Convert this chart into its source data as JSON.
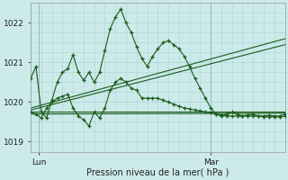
{
  "background_color": "#cceaea",
  "grid_color": "#aad4d4",
  "line_color": "#1a5c1a",
  "title": "Pression niveau de la mer( hPa )",
  "xlabel_lun": "Lun",
  "xlabel_mar": "Mar",
  "ylim": [
    1018.75,
    1022.5
  ],
  "xlim": [
    0,
    48
  ],
  "yticks": [
    1019,
    1020,
    1021,
    1022
  ],
  "lun_x": 1.5,
  "mar_x": 34,
  "series_main": {
    "x": [
      0,
      1,
      2,
      3,
      4,
      5,
      6,
      7,
      8,
      9,
      10,
      11,
      12,
      13,
      14,
      15,
      16,
      17,
      18,
      19,
      20,
      21,
      22,
      23,
      24,
      25,
      26,
      27,
      28,
      29,
      30,
      31,
      32,
      33,
      34,
      35,
      36,
      37,
      38,
      39,
      40,
      41,
      42,
      43,
      44,
      45,
      46,
      47,
      48
    ],
    "y": [
      1020.6,
      1020.9,
      1019.75,
      1019.6,
      1020.05,
      1020.5,
      1020.75,
      1020.85,
      1021.2,
      1020.75,
      1020.55,
      1020.75,
      1020.5,
      1020.75,
      1021.3,
      1021.85,
      1022.15,
      1022.35,
      1022.0,
      1021.75,
      1021.4,
      1021.1,
      1020.9,
      1021.15,
      1021.35,
      1021.5,
      1021.55,
      1021.45,
      1021.35,
      1021.15,
      1020.9,
      1020.6,
      1020.35,
      1020.1,
      1019.85,
      1019.7,
      1019.65,
      1019.7,
      1019.75,
      1019.7,
      1019.65,
      1019.68,
      1019.7,
      1019.65,
      1019.65,
      1019.67,
      1019.65,
      1019.65,
      1019.7
    ]
  },
  "series_alt": {
    "x": [
      0,
      1,
      2,
      3,
      4,
      5,
      6,
      7,
      8,
      9,
      10,
      11,
      12,
      13,
      14,
      15,
      16,
      17,
      18,
      19,
      20,
      21,
      22,
      23,
      24,
      25,
      26,
      27,
      28,
      29,
      30,
      31,
      32,
      33,
      34,
      35,
      36,
      37,
      38,
      39,
      40,
      41,
      42,
      43,
      44,
      45,
      46,
      47,
      48
    ],
    "y": [
      1019.75,
      1019.7,
      1019.6,
      1019.85,
      1020.0,
      1020.1,
      1020.15,
      1020.2,
      1019.85,
      1019.65,
      1019.55,
      1019.4,
      1019.75,
      1019.6,
      1019.85,
      1020.3,
      1020.5,
      1020.6,
      1020.5,
      1020.35,
      1020.3,
      1020.1,
      1020.1,
      1020.1,
      1020.1,
      1020.05,
      1020.0,
      1019.95,
      1019.9,
      1019.85,
      1019.83,
      1019.8,
      1019.78,
      1019.75,
      1019.73,
      1019.7,
      1019.68,
      1019.65,
      1019.65,
      1019.65,
      1019.65,
      1019.65,
      1019.65,
      1019.65,
      1019.63,
      1019.63,
      1019.63,
      1019.63,
      1019.65
    ]
  },
  "trend1": {
    "x": [
      0,
      48
    ],
    "y": [
      1019.85,
      1021.6
    ]
  },
  "trend2": {
    "x": [
      0,
      48
    ],
    "y": [
      1019.8,
      1021.45
    ]
  },
  "trend3": {
    "x": [
      0,
      48
    ],
    "y": [
      1019.75,
      1019.75
    ]
  },
  "trend4": {
    "x": [
      0,
      48
    ],
    "y": [
      1019.7,
      1019.72
    ]
  }
}
